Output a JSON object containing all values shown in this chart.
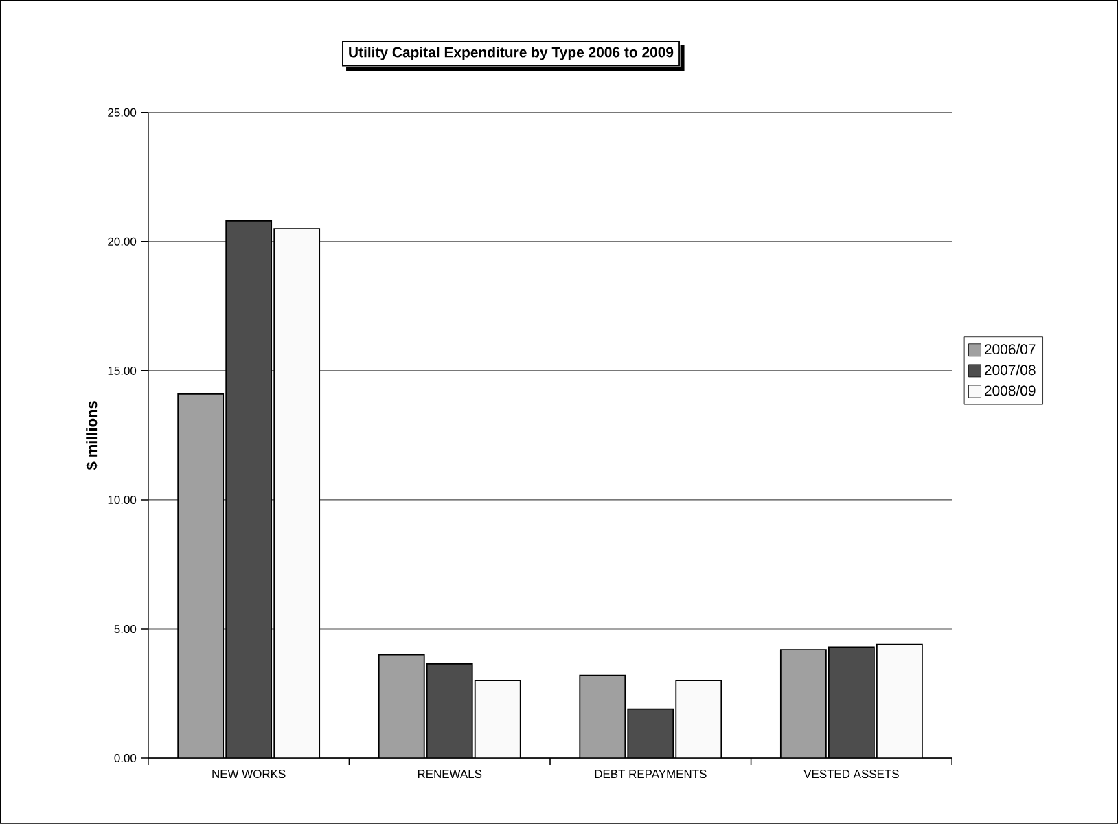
{
  "chart_data": {
    "type": "bar",
    "title": "Utility Capital Expenditure by Type 2006 to 2009",
    "ylabel": "$ millions",
    "categories": [
      "NEW WORKS",
      "RENEWALS",
      "DEBT REPAYMENTS",
      "VESTED ASSETS"
    ],
    "series": [
      {
        "name": "2006/07",
        "color": "#a0a0a0",
        "values": [
          14.1,
          4.0,
          3.2,
          4.2
        ]
      },
      {
        "name": "2007/08",
        "color": "#4d4d4d",
        "values": [
          20.8,
          3.65,
          1.9,
          4.3
        ]
      },
      {
        "name": "2008/09",
        "color": "#fafafa",
        "values": [
          20.5,
          3.0,
          3.0,
          4.4
        ]
      }
    ],
    "ylim": [
      0,
      25
    ],
    "yticks": [
      {
        "value": 0,
        "label": "0.00"
      },
      {
        "value": 5,
        "label": "5.00"
      },
      {
        "value": 10,
        "label": "10.00"
      },
      {
        "value": 15,
        "label": "15.00"
      },
      {
        "value": 20,
        "label": "20.00"
      },
      {
        "value": 25,
        "label": "25.00"
      }
    ],
    "grid": "y",
    "legend": "right"
  }
}
